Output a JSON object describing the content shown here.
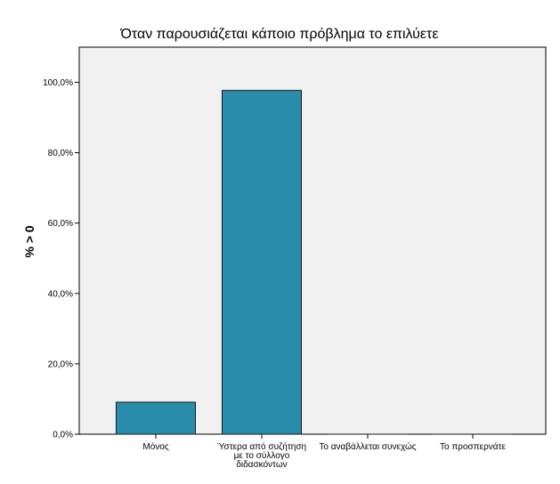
{
  "chart_data": {
    "type": "bar",
    "title": "Όταν παρουσιάζεται κάποιο πρόβλημα το επιλύετε",
    "xlabel": "",
    "ylabel": "% > 0",
    "categories": [
      [
        "Μόνος"
      ],
      [
        "Ύστερα από συζήτηση",
        "με το σύλλογο",
        "διδασκόντων"
      ],
      [
        "Το αναβάλλεται συνεχώς"
      ],
      [
        "Το προσπερνάτε"
      ]
    ],
    "values": [
      9.1,
      97.7,
      0.0,
      0.0
    ],
    "ylim": [
      0,
      110
    ],
    "yticks": [
      0,
      20,
      40,
      60,
      80,
      100
    ],
    "ytick_labels": [
      "0,0%",
      "20,0%",
      "40,0%",
      "60,0%",
      "80,0%",
      "100,0%"
    ],
    "grid": false,
    "colors": {
      "bar_fill": "#2a8cab",
      "bar_stroke": "#1a1a1a",
      "plot_bg": "#f0f0f0",
      "frame": "#000000"
    }
  }
}
